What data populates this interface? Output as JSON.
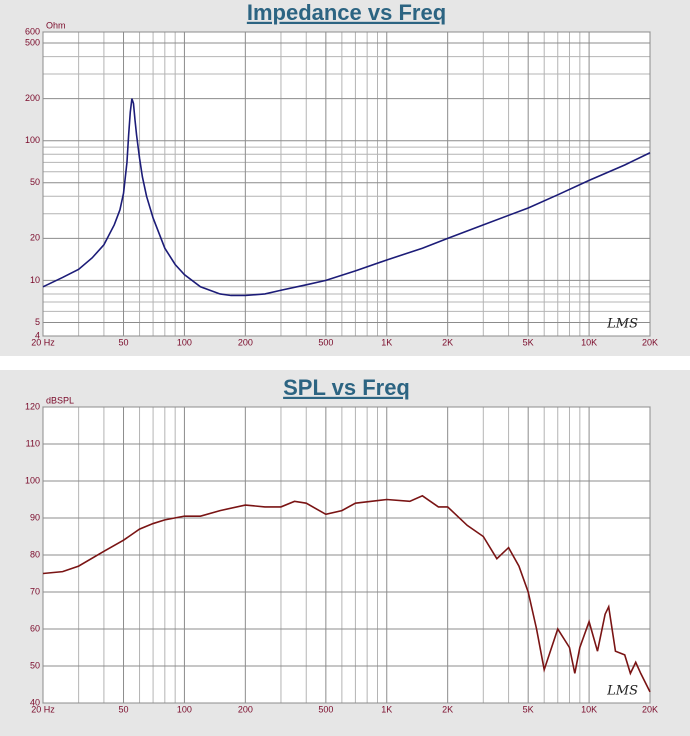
{
  "chart_data": [
    {
      "type": "line",
      "title": "Impedance vs Freq",
      "y_unit": "Ohm",
      "watermark": "LMS",
      "xscale": "log",
      "yscale": "log",
      "x": [
        20,
        25,
        30,
        35,
        40,
        45,
        48,
        50,
        52,
        53,
        54,
        55,
        56,
        57,
        58,
        60,
        62,
        65,
        70,
        80,
        90,
        100,
        120,
        150,
        170,
        200,
        250,
        300,
        400,
        500,
        700,
        1000,
        1500,
        2000,
        3000,
        5000,
        7000,
        10000,
        15000,
        20000
      ],
      "series": [
        {
          "color": "#1c1c78",
          "values": [
            9,
            10.5,
            12,
            14.5,
            18,
            25,
            32,
            42,
            70,
            110,
            160,
            200,
            185,
            140,
            110,
            75,
            55,
            40,
            28,
            17,
            13,
            11,
            9,
            8,
            7.8,
            7.8,
            8,
            8.5,
            9.3,
            10,
            11.7,
            14,
            17,
            20,
            25,
            33,
            41,
            52,
            67,
            82
          ]
        }
      ],
      "xlim": [
        20,
        20000
      ],
      "ylim": [
        4,
        600
      ],
      "xticks": [
        {
          "value": 20,
          "label": "20  Hz"
        },
        50,
        100,
        200,
        500,
        {
          "value": 1000,
          "label": "1K"
        },
        {
          "value": 2000,
          "label": "2K"
        },
        {
          "value": 5000,
          "label": "5K"
        },
        {
          "value": 10000,
          "label": "10K"
        },
        {
          "value": 20000,
          "label": "20K"
        }
      ],
      "x_minor_ticks": [
        30,
        40,
        60,
        70,
        80,
        90,
        300,
        400,
        600,
        700,
        800,
        900,
        3000,
        4000,
        6000,
        7000,
        8000,
        9000
      ],
      "yticks": [
        4,
        5,
        10,
        20,
        50,
        100,
        200,
        500,
        600
      ],
      "y_minor_ticks": [
        6,
        7,
        8,
        9,
        30,
        40,
        60,
        70,
        80,
        90,
        300,
        400
      ],
      "grid": true
    },
    {
      "type": "line",
      "title": "SPL vs Freq",
      "y_unit": "dBSPL",
      "watermark": "LMS",
      "xscale": "log",
      "yscale": "linear",
      "x": [
        20,
        25,
        30,
        40,
        50,
        60,
        70,
        80,
        100,
        120,
        150,
        200,
        250,
        300,
        350,
        400,
        500,
        600,
        700,
        1000,
        1300,
        1500,
        1800,
        2000,
        2500,
        3000,
        3500,
        4000,
        4500,
        5000,
        5500,
        6000,
        7000,
        8000,
        8500,
        9000,
        10000,
        11000,
        12000,
        12500,
        13500,
        15000,
        16000,
        17000,
        18000,
        20000
      ],
      "series": [
        {
          "color": "#7a1414",
          "values": [
            75,
            75.5,
            77,
            81,
            84,
            87,
            88.5,
            89.5,
            90.5,
            90.5,
            92,
            93.5,
            93,
            93,
            94.5,
            94,
            91,
            92,
            94,
            95,
            94.5,
            96,
            93,
            93,
            88,
            85,
            79,
            82,
            77,
            70,
            60,
            49,
            60,
            55,
            48,
            55,
            62,
            54,
            64,
            66,
            54,
            53,
            48,
            51,
            48,
            43
          ]
        }
      ],
      "xlim": [
        20,
        20000
      ],
      "ylim": [
        40,
        120
      ],
      "xticks": [
        {
          "value": 20,
          "label": "20  Hz"
        },
        50,
        100,
        200,
        500,
        {
          "value": 1000,
          "label": "1K"
        },
        {
          "value": 2000,
          "label": "2K"
        },
        {
          "value": 5000,
          "label": "5K"
        },
        {
          "value": 10000,
          "label": "10K"
        },
        {
          "value": 20000,
          "label": "20K"
        }
      ],
      "x_minor_ticks": [
        30,
        40,
        60,
        70,
        80,
        90,
        300,
        400,
        600,
        700,
        800,
        900,
        3000,
        4000,
        6000,
        7000,
        8000,
        9000
      ],
      "yticks": [
        40,
        50,
        60,
        70,
        80,
        90,
        100,
        110,
        120
      ],
      "y_minor_ticks": [],
      "grid": true
    }
  ]
}
